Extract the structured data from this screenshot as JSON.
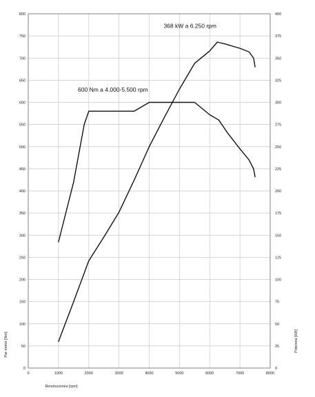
{
  "chart_data": {
    "type": "line",
    "title": "",
    "xlabel": "Revoluciones [rpm]",
    "ylabel_left": "Par motor [Nm]",
    "ylabel_right": "Potencia [kW]",
    "xlim": [
      0,
      8000
    ],
    "ylim_left": [
      0,
      800
    ],
    "ylim_right": [
      0,
      400
    ],
    "x_ticks": [
      "0",
      "1000",
      "2000",
      "3000",
      "4000",
      "5000",
      "6000",
      "7000",
      "8000"
    ],
    "y_left_ticks": [
      "0",
      "50",
      "100",
      "150",
      "200",
      "250",
      "300",
      "350",
      "400",
      "450",
      "500",
      "550",
      "600",
      "650",
      "700",
      "750",
      "800"
    ],
    "y_right_ticks": [
      "0",
      "25",
      "50",
      "75",
      "100",
      "125",
      "150",
      "175",
      "200",
      "225",
      "250",
      "275",
      "300",
      "325",
      "350",
      "375",
      "400"
    ],
    "grid": true,
    "series": [
      {
        "axis": "left",
        "points": [
          [
            1000,
            285
          ],
          [
            1500,
            420
          ],
          [
            1850,
            550
          ],
          [
            2000,
            580
          ],
          [
            3500,
            580
          ],
          [
            4000,
            600
          ],
          [
            5500,
            600
          ],
          [
            6000,
            572
          ],
          [
            6300,
            560
          ],
          [
            6600,
            530
          ],
          [
            7000,
            495
          ],
          [
            7300,
            470
          ],
          [
            7450,
            450
          ],
          [
            7500,
            432
          ]
        ]
      },
      {
        "axis": "right",
        "points": [
          [
            1000,
            30
          ],
          [
            1500,
            75
          ],
          [
            2000,
            121
          ],
          [
            2500,
            148
          ],
          [
            3000,
            176
          ],
          [
            3500,
            212
          ],
          [
            4000,
            250
          ],
          [
            4500,
            283
          ],
          [
            5000,
            315
          ],
          [
            5500,
            344
          ],
          [
            6000,
            358
          ],
          [
            6250,
            368
          ],
          [
            6500,
            366
          ],
          [
            7000,
            361
          ],
          [
            7300,
            357
          ],
          [
            7450,
            350
          ],
          [
            7500,
            340
          ]
        ]
      }
    ],
    "annotations": [
      {
        "text": "600 Nm a 4.000-5.500 rpm",
        "x": 2800,
        "y": 624
      },
      {
        "text": "368 kW a 6.250 rpm",
        "x": 5350,
        "y": 768
      }
    ]
  }
}
